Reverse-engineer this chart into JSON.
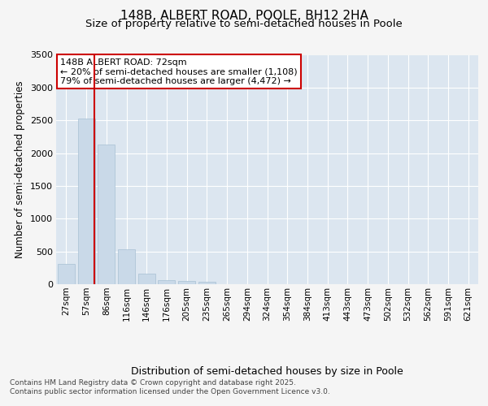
{
  "title_line1": "148B, ALBERT ROAD, POOLE, BH12 2HA",
  "title_line2": "Size of property relative to semi-detached houses in Poole",
  "xlabel": "Distribution of semi-detached houses by size in Poole",
  "ylabel": "Number of semi-detached properties",
  "categories": [
    "27sqm",
    "57sqm",
    "86sqm",
    "116sqm",
    "146sqm",
    "176sqm",
    "205sqm",
    "235sqm",
    "265sqm",
    "294sqm",
    "324sqm",
    "354sqm",
    "384sqm",
    "413sqm",
    "443sqm",
    "473sqm",
    "502sqm",
    "532sqm",
    "562sqm",
    "591sqm",
    "621sqm"
  ],
  "values": [
    310,
    2530,
    2130,
    530,
    160,
    65,
    45,
    35,
    0,
    0,
    0,
    0,
    0,
    0,
    0,
    0,
    0,
    0,
    0,
    0,
    0
  ],
  "bar_color": "#c9d9e8",
  "bar_edge_color": "#a8c0d4",
  "vline_x_index": 1.42,
  "vline_color": "#cc0000",
  "annotation_text": "148B ALBERT ROAD: 72sqm\n← 20% of semi-detached houses are smaller (1,108)\n79% of semi-detached houses are larger (4,472) →",
  "annotation_box_facecolor": "#ffffff",
  "annotation_box_edgecolor": "#cc0000",
  "ylim": [
    0,
    3500
  ],
  "yticks": [
    0,
    500,
    1000,
    1500,
    2000,
    2500,
    3000,
    3500
  ],
  "plot_bg_color": "#dce6f0",
  "fig_bg_color": "#f5f5f5",
  "grid_color": "#ffffff",
  "footer_line1": "Contains HM Land Registry data © Crown copyright and database right 2025.",
  "footer_line2": "Contains public sector information licensed under the Open Government Licence v3.0.",
  "title_fontsize": 11,
  "subtitle_fontsize": 9.5,
  "tick_fontsize": 7.5,
  "ylabel_fontsize": 8.5,
  "xlabel_fontsize": 9,
  "annotation_fontsize": 8,
  "footer_fontsize": 6.5
}
